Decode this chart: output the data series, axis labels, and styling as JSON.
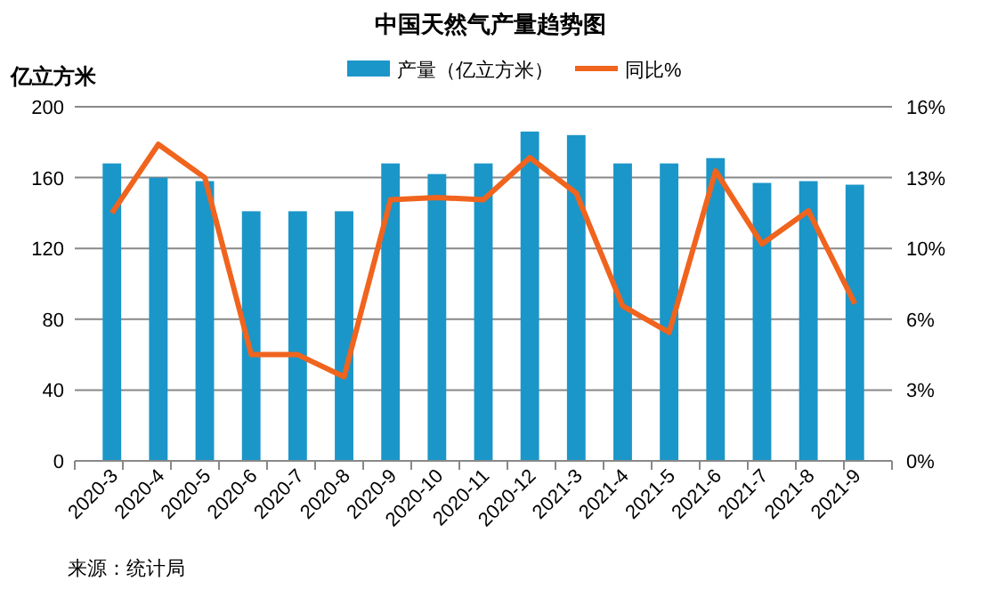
{
  "chart_data": {
    "type": "bar",
    "title": "中国天然气产量趋势图",
    "ylabel": "亿立方米",
    "categories": [
      "2020-3",
      "2020-4",
      "2020-5",
      "2020-6",
      "2020-7",
      "2020-8",
      "2020-9",
      "2020-10",
      "2020-11",
      "2020-12",
      "2021-3",
      "2021-4",
      "2021-5",
      "2021-6",
      "2021-7",
      "2021-8",
      "2021-9"
    ],
    "series": [
      {
        "name": "产量（亿立方米）",
        "color": "#1b96c8",
        "values": [
          168,
          160,
          158,
          141,
          141,
          141,
          168,
          162,
          168,
          186,
          184,
          168,
          168,
          171,
          157,
          158,
          156
        ]
      },
      {
        "name": "同比%",
        "type": "line",
        "axis": "y2",
        "color": "#f0641e",
        "values": [
          11.2,
          14.3,
          12.8,
          4.8,
          4.8,
          3.8,
          11.8,
          11.9,
          11.8,
          13.7,
          12.1,
          7.0,
          5.8,
          13.1,
          9.8,
          11.3,
          7.1
        ]
      }
    ],
    "ylim": [
      0,
      200
    ],
    "yticks": [
      0,
      40,
      80,
      120,
      160,
      200
    ],
    "y2lim": [
      0,
      16
    ],
    "y2ticks": [
      {
        "value": 0,
        "label": "0%"
      },
      {
        "value": 3.2,
        "label": "3%"
      },
      {
        "value": 6.4,
        "label": "6%"
      },
      {
        "value": 9.6,
        "label": "10%"
      },
      {
        "value": 12.8,
        "label": "13%"
      },
      {
        "value": 16,
        "label": "16%"
      }
    ],
    "grid": "y",
    "legend": "top",
    "marker": "none",
    "line_style": "solid",
    "annotations": [
      "来源：统计局"
    ]
  }
}
